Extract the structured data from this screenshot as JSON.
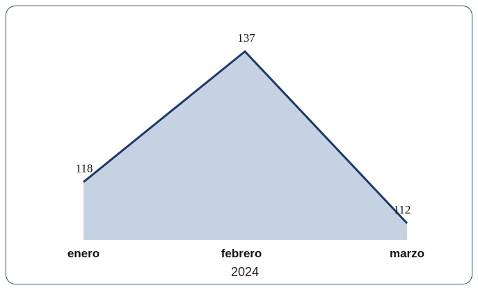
{
  "chart_data": {
    "type": "area",
    "categories": [
      "enero",
      "febrero",
      "marzo"
    ],
    "values": [
      118,
      137,
      112
    ],
    "data_labels": [
      "118",
      "137",
      "112"
    ],
    "title": "",
    "xlabel": "2024",
    "ylabel": "",
    "grid": false,
    "legend": "none",
    "colors": {
      "fill": "#c6d2e2",
      "line": "#1b3a6b",
      "border": "#2b4a78"
    }
  }
}
